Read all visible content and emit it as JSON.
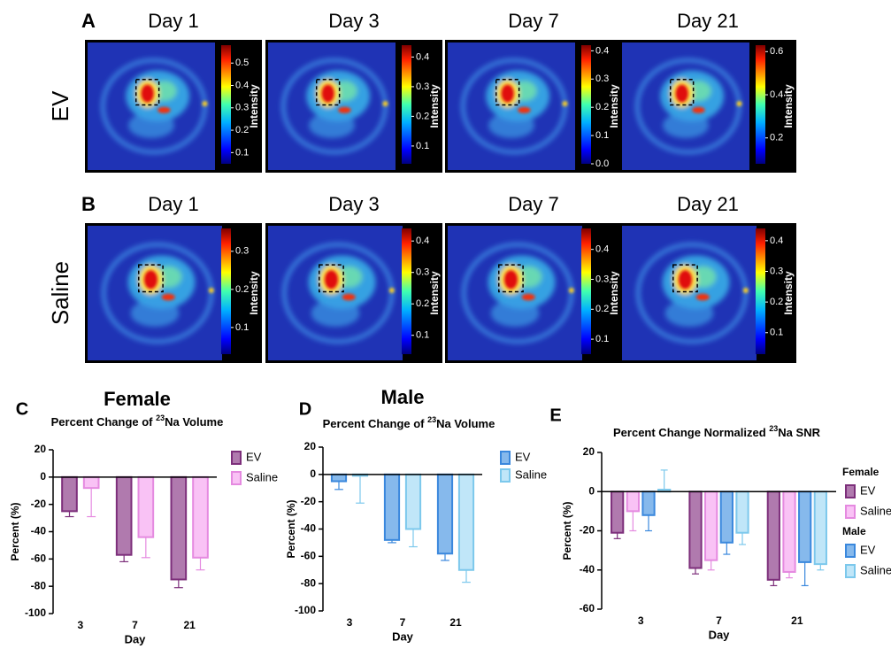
{
  "figure": {
    "colorbar_label": "Intensity",
    "rows": [
      {
        "label": "A",
        "row_title": "EV",
        "images": [
          {
            "title": "Day 1",
            "clim": [
              0.05,
              0.58
            ],
            "ticks": [
              0.1,
              0.2,
              0.3,
              0.4,
              0.5
            ]
          },
          {
            "title": "Day 3",
            "clim": [
              0.04,
              0.44
            ],
            "ticks": [
              0.1,
              0.2,
              0.3,
              0.4
            ]
          },
          {
            "title": "Day 7",
            "clim": [
              0,
              0.42
            ],
            "ticks": [
              {
                "value": 0,
                "label": "0.0"
              },
              0.1,
              0.2,
              0.3,
              0.4
            ]
          },
          {
            "title": "Day 21",
            "clim": [
              0.08,
              0.63
            ],
            "ticks": [
              0.2,
              0.4,
              0.6
            ]
          }
        ]
      },
      {
        "label": "B",
        "row_title": "Saline",
        "images": [
          {
            "title": "Day 1",
            "clim": [
              0.03,
              0.36
            ],
            "ticks": [
              0.1,
              0.2,
              0.3
            ]
          },
          {
            "title": "Day 3",
            "clim": [
              0.04,
              0.44
            ],
            "ticks": [
              0.1,
              0.2,
              0.3,
              0.4
            ]
          },
          {
            "title": "Day 7",
            "clim": [
              0.05,
              0.47
            ],
            "ticks": [
              0.1,
              0.2,
              0.3,
              0.4
            ]
          },
          {
            "title": "Day 21",
            "clim": [
              0.03,
              0.44
            ],
            "ticks": [
              0.1,
              0.2,
              0.3,
              0.4
            ]
          }
        ]
      }
    ]
  },
  "chart_data": [
    {
      "type": "bar",
      "panel_label": "C",
      "title": "Female",
      "subtitle_parts": [
        "Percent Change of ",
        "23",
        "Na Volume"
      ],
      "ylabel": "Percent (%)",
      "xlabel": "Day",
      "categories": [
        "3",
        "7",
        "21"
      ],
      "ylim": [
        -100,
        20
      ],
      "yticks": [
        -100,
        -80,
        -60,
        -40,
        -20,
        0,
        20
      ],
      "series": [
        {
          "name": "EV",
          "color": "#b07aae",
          "edge": "#7d2f7b",
          "values": [
            -25,
            -57,
            -75
          ],
          "errors": [
            4,
            5,
            6
          ]
        },
        {
          "name": "Saline",
          "color": "#f9c2f5",
          "edge": "#e58ae0",
          "values": [
            -8,
            -44,
            -59
          ],
          "errors": [
            21,
            15,
            9
          ]
        }
      ]
    },
    {
      "type": "bar",
      "panel_label": "D",
      "title": "Male",
      "subtitle_parts": [
        "Percent Change of ",
        "23",
        "Na Volume"
      ],
      "ylabel": "Percent (%)",
      "xlabel": "Day",
      "categories": [
        "3",
        "7",
        "21"
      ],
      "ylim": [
        -100,
        20
      ],
      "yticks": [
        -100,
        -80,
        -60,
        -40,
        -20,
        0,
        20
      ],
      "series": [
        {
          "name": "EV",
          "color": "#86b9ec",
          "edge": "#3a88dd",
          "values": [
            -5,
            -48,
            -58
          ],
          "errors": [
            6,
            2,
            5
          ]
        },
        {
          "name": "Saline",
          "color": "#c0e6f8",
          "edge": "#7cc8ec",
          "values": [
            -1,
            -40,
            -70
          ],
          "errors": [
            20,
            13,
            9
          ]
        }
      ]
    },
    {
      "type": "bar",
      "panel_label": "E",
      "subtitle_parts": [
        "Percent Change Normalized ",
        "23",
        "Na SNR"
      ],
      "ylabel": "Percent (%)",
      "xlabel": "Day",
      "categories": [
        "3",
        "7",
        "21"
      ],
      "ylim": [
        -60,
        20
      ],
      "yticks": [
        -60,
        -40,
        -20,
        0,
        20
      ],
      "series": [
        {
          "name": "EV",
          "group": "Female",
          "color": "#b07aae",
          "edge": "#7d2f7b",
          "values": [
            -21,
            -39,
            -45
          ],
          "errors": [
            3,
            3,
            3
          ]
        },
        {
          "name": "Saline",
          "group": "Female",
          "color": "#f9c2f5",
          "edge": "#e58ae0",
          "values": [
            -10,
            -35,
            -41
          ],
          "errors": [
            10,
            5,
            3
          ]
        },
        {
          "name": "EV",
          "group": "Male",
          "color": "#86b9ec",
          "edge": "#3a88dd",
          "values": [
            -12,
            -26,
            -36
          ],
          "errors": [
            8,
            6,
            12
          ]
        },
        {
          "name": "Saline",
          "group": "Male",
          "color": "#c0e6f8",
          "edge": "#7cc8ec",
          "values": [
            1,
            -21,
            -37
          ],
          "errors": [
            10,
            6,
            3
          ]
        }
      ]
    }
  ]
}
